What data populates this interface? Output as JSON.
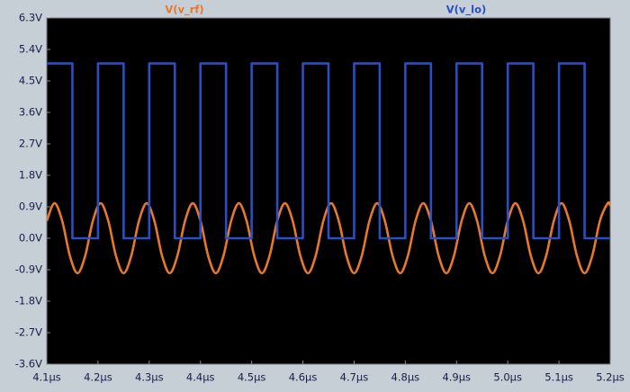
{
  "chart_data": {
    "type": "line",
    "xlim": [
      4.1,
      5.2
    ],
    "xticks": [
      {
        "value": 4.1,
        "label": "4.1µs"
      },
      {
        "value": 4.2,
        "label": "4.2µs"
      },
      {
        "value": 4.3,
        "label": "4.3µs"
      },
      {
        "value": 4.4,
        "label": "4.4µs"
      },
      {
        "value": 4.5,
        "label": "4.5µs"
      },
      {
        "value": 4.6,
        "label": "4.6µs"
      },
      {
        "value": 4.7,
        "label": "4.7µs"
      },
      {
        "value": 4.8,
        "label": "4.8µs"
      },
      {
        "value": 4.9,
        "label": "4.9µs"
      },
      {
        "value": 5.0,
        "label": "5.0µs"
      },
      {
        "value": 5.1,
        "label": "5.1µs"
      },
      {
        "value": 5.2,
        "label": "5.2µs"
      }
    ],
    "ylim": [
      -3.6,
      6.3
    ],
    "yticks": [
      {
        "value": 6.3,
        "label": "6.3V"
      },
      {
        "value": 5.4,
        "label": "5.4V"
      },
      {
        "value": 4.5,
        "label": "4.5V"
      },
      {
        "value": 3.6,
        "label": "3.6V"
      },
      {
        "value": 2.7,
        "label": "2.7V"
      },
      {
        "value": 1.8,
        "label": "1.8V"
      },
      {
        "value": 0.9,
        "label": "0.9V"
      },
      {
        "value": 0,
        "label": "0.0V"
      },
      {
        "value": -0.9,
        "label": "-0.9V"
      },
      {
        "value": -1.8,
        "label": "-1.8V"
      },
      {
        "value": -2.7,
        "label": "-2.7V"
      },
      {
        "value": -3.6,
        "label": "-3.6V"
      }
    ],
    "grid": false,
    "series": [
      {
        "name": "V(v_rf)",
        "color": "#e8782c",
        "interpolation": "spline",
        "x": [
          4.1,
          4.115,
          4.13,
          4.145,
          4.16,
          4.175,
          4.19,
          4.205,
          4.22,
          4.235,
          4.25,
          4.265,
          4.28,
          4.295,
          4.31,
          4.325,
          4.34,
          4.355,
          4.37,
          4.385,
          4.4,
          4.415,
          4.43,
          4.445,
          4.46,
          4.475,
          4.49,
          4.505,
          4.52,
          4.535,
          4.55,
          4.565,
          4.58,
          4.595,
          4.61,
          4.625,
          4.64,
          4.655,
          4.67,
          4.685,
          4.7,
          4.715,
          4.73,
          4.745,
          4.76,
          4.775,
          4.79,
          4.805,
          4.82,
          4.835,
          4.85,
          4.865,
          4.88,
          4.895,
          4.91,
          4.925,
          4.94,
          4.955,
          4.97,
          4.985,
          5,
          5.015,
          5.03,
          5.045,
          5.06,
          5.075,
          5.09,
          5.105,
          5.12,
          5.135,
          5.15,
          5.165,
          5.18,
          5.195,
          5.2
        ],
        "values": [
          0.5,
          1,
          0.5,
          -0.5,
          -1,
          -0.5,
          0.5,
          1,
          0.5,
          -0.5,
          -1,
          -0.5,
          0.5,
          1,
          0.5,
          -0.5,
          -1,
          -0.5,
          0.5,
          1,
          0.5,
          -0.5,
          -1,
          -0.5,
          0.5,
          1,
          0.5,
          -0.5,
          -1,
          -0.5,
          0.5,
          1,
          0.5,
          -0.5,
          -1,
          -0.5,
          0.5,
          1,
          0.5,
          -0.5,
          -1,
          -0.5,
          0.5,
          1,
          0.5,
          -0.5,
          -1,
          -0.5,
          0.5,
          1,
          0.5,
          -0.5,
          -1,
          -0.5,
          0.5,
          1,
          0.5,
          -0.5,
          -1,
          -0.5,
          0.5,
          1,
          0.5,
          -0.5,
          -1,
          -0.5,
          0.5,
          1,
          0.5,
          -0.5,
          -1,
          -0.5,
          0.5,
          1,
          0.94
        ]
      },
      {
        "name": "V(v_lo)",
        "color": "#2a4fc4",
        "interpolation": "linear",
        "x": [
          4.1,
          4.15,
          4.15,
          4.2,
          4.2,
          4.25,
          4.25,
          4.3,
          4.3,
          4.35,
          4.35,
          4.4,
          4.4,
          4.45,
          4.45,
          4.5,
          4.5,
          4.55,
          4.55,
          4.6,
          4.6,
          4.65,
          4.65,
          4.7,
          4.7,
          4.75,
          4.75,
          4.8,
          4.8,
          4.85,
          4.85,
          4.9,
          4.9,
          4.95,
          4.95,
          5,
          5,
          5.05,
          5.05,
          5.1,
          5.1,
          5.15,
          5.15,
          5.2
        ],
        "values": [
          5,
          5,
          0,
          0,
          5,
          5,
          0,
          0,
          5,
          5,
          0,
          0,
          5,
          5,
          0,
          0,
          5,
          5,
          0,
          0,
          5,
          5,
          0,
          0,
          5,
          5,
          0,
          0,
          5,
          5,
          0,
          0,
          5,
          5,
          0,
          0,
          5,
          5,
          0,
          0,
          5,
          5,
          0,
          0
        ]
      }
    ]
  }
}
